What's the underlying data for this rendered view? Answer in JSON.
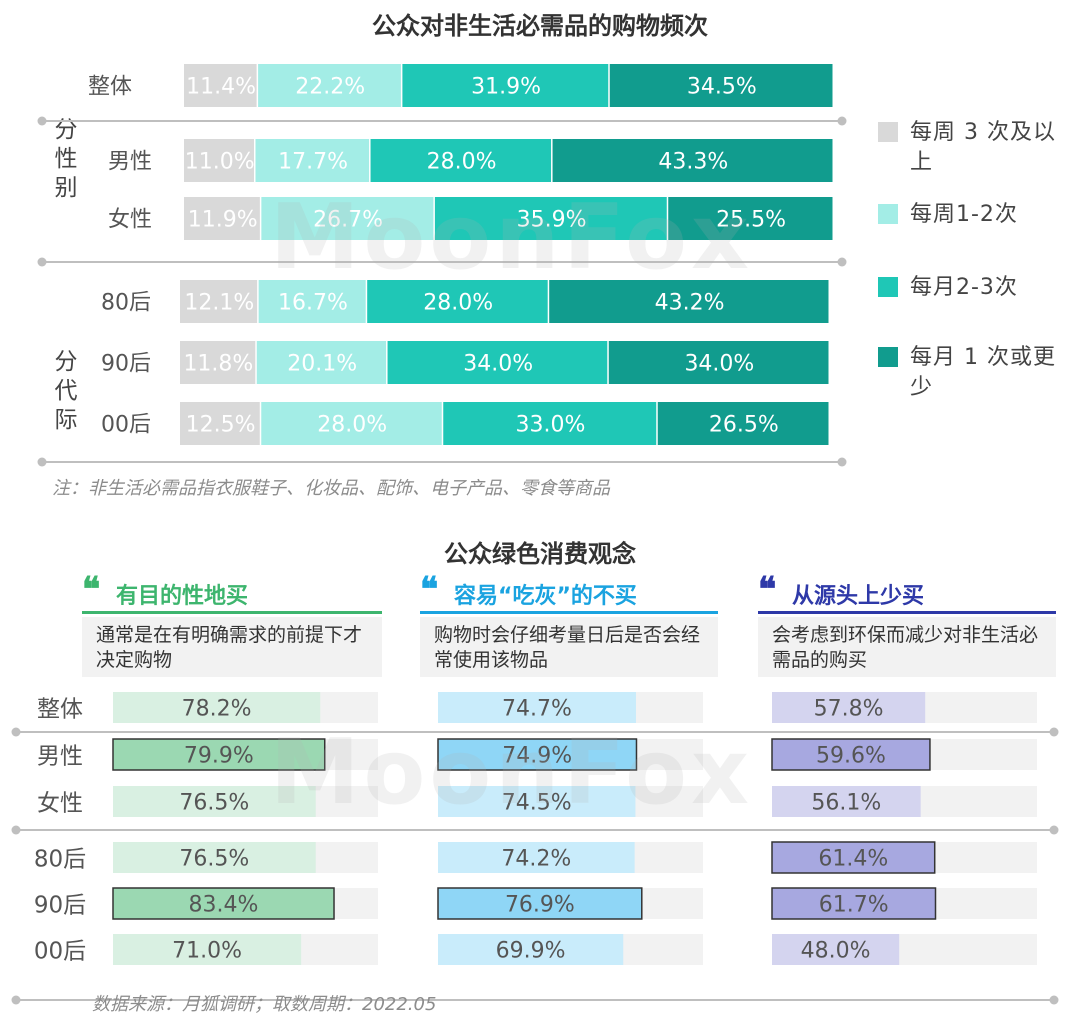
{
  "chart_data": [
    {
      "type": "bar",
      "orientation": "horizontal-stacked-100",
      "title": "公众对非生活必需品的购物频次",
      "series": [
        {
          "name": "每周3次及以上",
          "color": "#d9d9d9"
        },
        {
          "name": "每周1-2次",
          "color": "#a3ede6"
        },
        {
          "name": "每月2-3次",
          "color": "#1fc7b6"
        },
        {
          "name": "每月1次或更少",
          "color": "#119c8e"
        }
      ],
      "groups": [
        {
          "label": "",
          "rows": [
            {
              "label": "整体",
              "values": [
                11.4,
                22.2,
                31.9,
                34.5
              ],
              "texts": [
                "11.4%",
                "22.2%",
                "31.9%",
                "34.5%"
              ]
            }
          ]
        },
        {
          "label": "分性别",
          "rows": [
            {
              "label": "男性",
              "values": [
                11.0,
                17.7,
                28.0,
                43.3
              ],
              "texts": [
                "11.0%",
                "17.7%",
                "28.0%",
                "43.3%"
              ]
            },
            {
              "label": "女性",
              "values": [
                11.9,
                26.7,
                35.9,
                25.5
              ],
              "texts": [
                "11.9%",
                "26.7%",
                "35.9%",
                "25.5%"
              ]
            }
          ]
        },
        {
          "label": "分代际",
          "rows": [
            {
              "label": "80后",
              "values": [
                12.1,
                16.7,
                28.0,
                43.2
              ],
              "texts": [
                "12.1%",
                "16.7%",
                "28.0%",
                "43.2%"
              ]
            },
            {
              "label": "90后",
              "values": [
                11.8,
                20.1,
                34.0,
                34.0
              ],
              "texts": [
                "11.8%",
                "20.1%",
                "34.0%",
                "34.0%"
              ]
            },
            {
              "label": "00后",
              "values": [
                12.5,
                28.0,
                33.0,
                26.5
              ],
              "texts": [
                "12.5%",
                "28.0%",
                "33.0%",
                "26.5%"
              ]
            }
          ]
        }
      ],
      "legend": {
        "position": "right",
        "items": [
          {
            "label": "每周 3 次及以上",
            "color": "#d9d9d9"
          },
          {
            "label": "每周1-2次",
            "color": "#a3ede6"
          },
          {
            "label": "每月2-3次",
            "color": "#1fc7b6"
          },
          {
            "label": "每月 1 次或更少",
            "color": "#119c8e"
          }
        ]
      },
      "note": "注：非生活必需品指衣服鞋子、化妆品、配饰、电子产品、零食等商品"
    },
    {
      "type": "bar",
      "orientation": "horizontal",
      "title": "公众绿色消费观念",
      "xlim": [
        0,
        100
      ],
      "categories": [
        "整体",
        "男性",
        "女性",
        "80后",
        "90后",
        "00后"
      ],
      "series": [
        {
          "name": "有目的性地买",
          "description": "通常是在有明确需求的前提下才决定购物",
          "quote": "❝",
          "color": "#3db56e",
          "light_color": "#d9f0e2",
          "bold_color": "#9bd8b2",
          "values": [
            78.2,
            79.9,
            76.5,
            76.5,
            83.4,
            71.0
          ],
          "texts": [
            "78.2%",
            "79.9%",
            "76.5%",
            "76.5%",
            "83.4%",
            "71.0%"
          ],
          "emphasized": [
            false,
            true,
            false,
            false,
            true,
            false
          ]
        },
        {
          "name": "容易“吃灰”的不买",
          "description": "购物时会仔细考量日后是否会经常使用该物品",
          "quote": "❝",
          "color": "#1aa3e0",
          "light_color": "#c9ecfb",
          "bold_color": "#8fd6f6",
          "values": [
            74.7,
            74.9,
            74.5,
            74.2,
            76.9,
            69.9
          ],
          "texts": [
            "74.7%",
            "74.9%",
            "74.5%",
            "74.2%",
            "76.9%",
            "69.9%"
          ],
          "emphasized": [
            false,
            true,
            false,
            false,
            true,
            false
          ]
        },
        {
          "name": "从源头上少买",
          "description": "会考虑到环保而减少对非生活必需品的购买",
          "quote": "❝",
          "color": "#2e39a8",
          "light_color": "#d4d4ef",
          "bold_color": "#a7a8e0",
          "values": [
            57.8,
            59.6,
            56.1,
            61.4,
            61.7,
            48.0
          ],
          "texts": [
            "57.8%",
            "59.6%",
            "56.1%",
            "61.4%",
            "61.7%",
            "48.0%"
          ],
          "emphasized": [
            false,
            true,
            false,
            true,
            true,
            false
          ]
        }
      ],
      "source": "数据来源：月狐调研；取数周期：2022.05"
    }
  ],
  "watermark": "MoonFox"
}
